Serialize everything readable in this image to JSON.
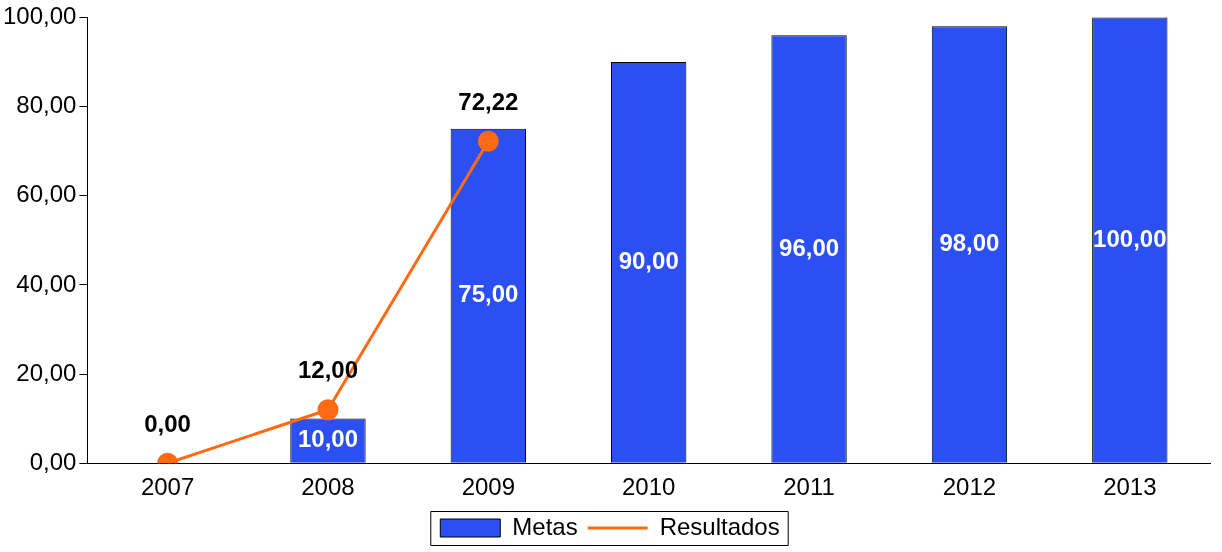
{
  "chart_data": {
    "type": "bar",
    "categories": [
      "2007",
      "2008",
      "2009",
      "2010",
      "2011",
      "2012",
      "2013"
    ],
    "series": [
      {
        "name": "Metas",
        "color": "#2b4ff0",
        "values": [
          null,
          10,
          75,
          90,
          96,
          98,
          100
        ],
        "value_labels": [
          null,
          "10,00",
          "75,00",
          "90,00",
          "96,00",
          "98,00",
          "100,00"
        ]
      },
      {
        "name": "Resultados",
        "type": "line",
        "color": "#ff6a13",
        "values": [
          0,
          12,
          72.22,
          null,
          null,
          null,
          null
        ],
        "value_labels": [
          "0,00",
          "12,00",
          "72,22",
          null,
          null,
          null,
          null
        ]
      }
    ],
    "ylim": [
      0,
      100
    ],
    "yticks": [
      {
        "value": 0,
        "label": "0,00"
      },
      {
        "value": 20,
        "label": "20,00"
      },
      {
        "value": 40,
        "label": "40,00"
      },
      {
        "value": 60,
        "label": "60,00"
      },
      {
        "value": 80,
        "label": "80,00"
      },
      {
        "value": 100,
        "label": "100,00"
      }
    ],
    "grid": false,
    "legend": "bottom",
    "marker": "circle",
    "line_style": "solid"
  }
}
